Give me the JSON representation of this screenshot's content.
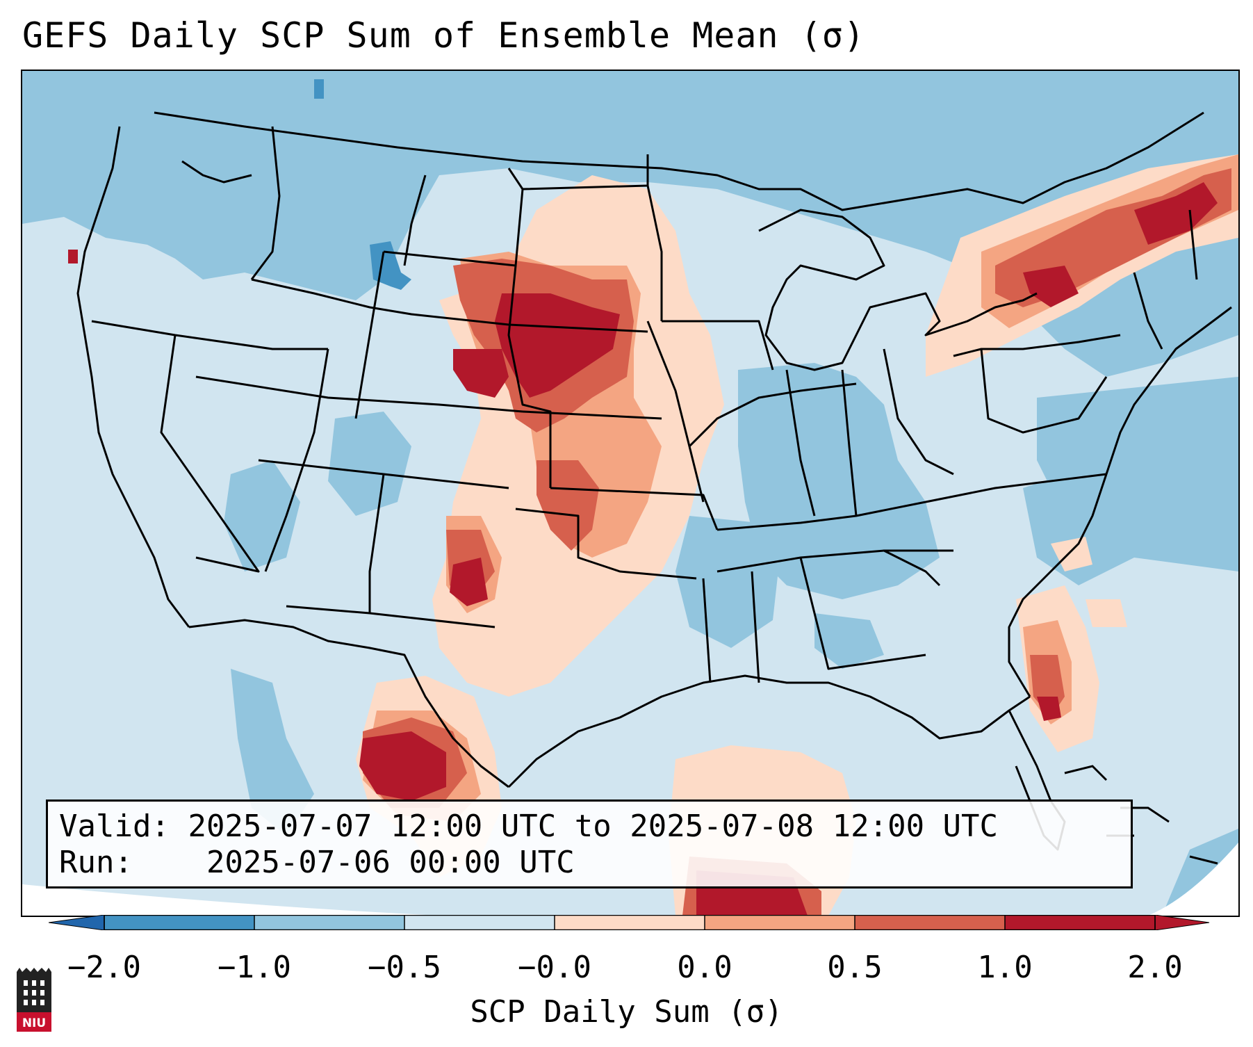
{
  "title": "GEFS Daily SCP Sum of Ensemble Mean (σ)",
  "info": {
    "valid_label": "Valid:",
    "valid_value": "2025-07-07 12:00 UTC to 2025-07-08 12:00 UTC",
    "run_label": "Run:",
    "run_value": "2025-07-06 00:00 UTC"
  },
  "colorbar": {
    "label": "SCP Daily Sum (σ)",
    "ticks": [
      "−2.0",
      "−1.0",
      "−0.5",
      "−0.0",
      "0.0",
      "0.5",
      "1.0",
      "2.0"
    ],
    "colors": [
      "#4393c3",
      "#92c5de",
      "#d1e5f0",
      "#fddbc7",
      "#f4a582",
      "#d6604d",
      "#b2182b"
    ],
    "under_color": "#2166ac",
    "over_color": "#b2182b",
    "neutral_color": "#d1e5f0"
  },
  "logo": {
    "text": "NIU"
  },
  "colors": {
    "light_blue": "#d1e5f0",
    "mid_blue": "#92c5de",
    "blue": "#4393c3",
    "light_red": "#fddbc7",
    "mid_red": "#f4a582",
    "red": "#d6604d",
    "dark_red": "#b2182b"
  }
}
